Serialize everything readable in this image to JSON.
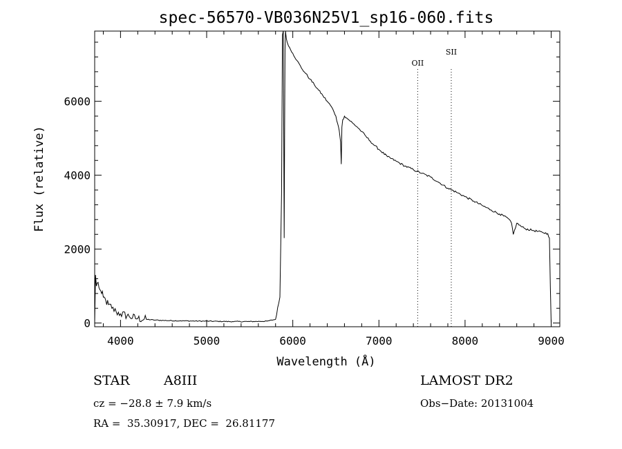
{
  "chart_data": {
    "type": "line",
    "title": "spec-56570-VB036N25V1_sp16-060.fits",
    "xlabel": "Wavelength (Å)",
    "ylabel": "Flux (relative)",
    "xlim": [
      3700,
      9100
    ],
    "ylim": [
      -100,
      7900
    ],
    "x_ticks": [
      "4000",
      "5000",
      "6000",
      "7000",
      "8000",
      "9000"
    ],
    "y_ticks": [
      "0",
      "2000",
      "4000",
      "6000"
    ],
    "line_markers": [
      {
        "label": "OII",
        "x": 7450
      },
      {
        "label": "SII",
        "x": 7840
      }
    ],
    "series": [
      {
        "x": [
          3700,
          3710,
          3720,
          3740,
          3760,
          3780,
          3800,
          3830,
          3860,
          3900,
          3950,
          4000,
          4100,
          4200,
          4300,
          4400,
          4500,
          4700,
          5000,
          5300,
          5500,
          5700,
          5800,
          5850,
          5870,
          5880,
          5890,
          5895,
          5900,
          5905,
          5910,
          5915,
          5925,
          5935,
          5950,
          6000,
          6050,
          6100,
          6150,
          6200,
          6250,
          6300,
          6350,
          6400,
          6450,
          6480,
          6500,
          6520,
          6540,
          6555,
          6563,
          6570,
          6580,
          6600,
          6650,
          6700,
          6750,
          6800,
          6850,
          6900,
          6950,
          7000,
          7100,
          7200,
          7300,
          7400,
          7500,
          7600,
          7700,
          7800,
          7900,
          8000,
          8100,
          8200,
          8300,
          8400,
          8500,
          8540,
          8560,
          8600,
          8660,
          8700,
          8800,
          8900,
          8960,
          8980,
          8990,
          9000
        ],
        "y": [
          0,
          1300,
          1000,
          1100,
          900,
          800,
          700,
          600,
          500,
          400,
          300,
          250,
          180,
          120,
          100,
          80,
          70,
          60,
          50,
          40,
          40,
          50,
          100,
          700,
          3500,
          7800,
          7900,
          5000,
          2300,
          5000,
          7400,
          7900,
          7700,
          7600,
          7500,
          7300,
          7100,
          6900,
          6750,
          6600,
          6450,
          6300,
          6150,
          6000,
          5850,
          5700,
          5600,
          5400,
          5200,
          4900,
          4300,
          5300,
          5500,
          5600,
          5500,
          5400,
          5300,
          5180,
          5050,
          4920,
          4800,
          4700,
          4500,
          4380,
          4250,
          4150,
          4050,
          3950,
          3800,
          3650,
          3540,
          3420,
          3300,
          3180,
          3060,
          2950,
          2830,
          2700,
          2400,
          2700,
          2600,
          2550,
          2500,
          2450,
          2420,
          2300,
          1000,
          0
        ]
      }
    ]
  },
  "footer": {
    "object_type": "STAR",
    "spectral_class": "A8III",
    "survey": "LAMOST DR2",
    "cz": "cz = −28.8 ± 7.9 km/s",
    "obs_date": "Obs−Date: 20131004",
    "coords": "RA =  35.30917, DEC =  26.81177"
  }
}
